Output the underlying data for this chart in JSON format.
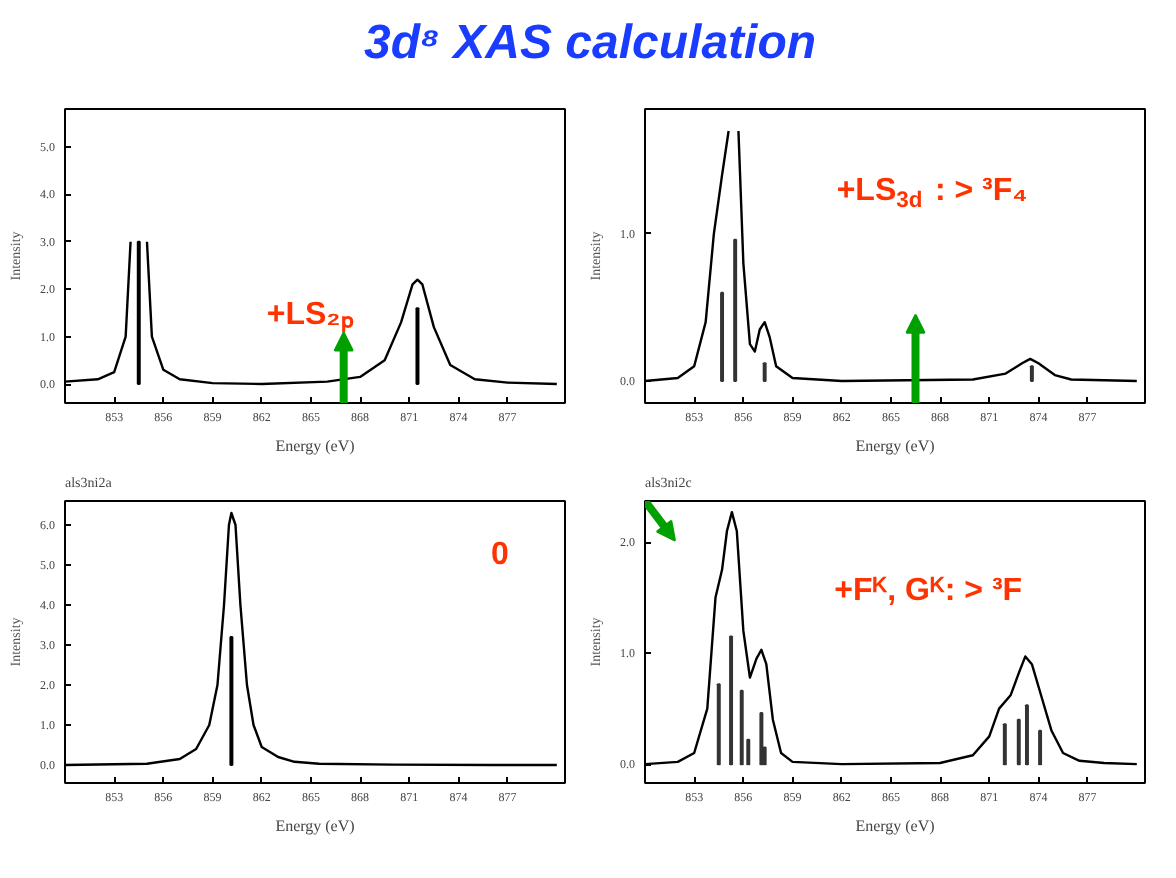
{
  "chart_data": [
    {
      "type": "line",
      "title": "3d⁸  XAS calculation",
      "xlabel": "Energy (eV)",
      "ylabel": "Intensity",
      "xlim": [
        850,
        880.5
      ],
      "xticks": [
        853,
        856,
        859,
        862,
        865,
        868,
        871,
        874,
        877
      ],
      "ylim": [
        -0.4,
        5.8
      ],
      "yticks": [
        {
          "value": 0,
          "label": "0.0"
        },
        {
          "value": 1,
          "label": "1.0"
        },
        {
          "value": 2,
          "label": "2.0"
        },
        {
          "value": 3,
          "label": "3.0"
        },
        {
          "value": 4,
          "label": "4.0"
        },
        {
          "value": 5,
          "label": "5.0"
        }
      ],
      "annotations": [
        "+LS₂ₚ"
      ],
      "grid": false,
      "series": [
        {
          "color": "#000000",
          "x": [
            850,
            852,
            853,
            853.7,
            854.0,
            854.3,
            854.7,
            855.0,
            855.3,
            856,
            857,
            859,
            862,
            866,
            868,
            869.5,
            870.5,
            871.2,
            871.5,
            871.8,
            872.5,
            873.5,
            875,
            877,
            880
          ],
          "values": [
            0.05,
            0.1,
            0.25,
            1.0,
            3.0,
            null,
            null,
            3.0,
            1.0,
            0.3,
            0.1,
            0.02,
            0.0,
            0.05,
            0.15,
            0.5,
            1.3,
            2.1,
            2.2,
            2.1,
            1.2,
            0.4,
            0.1,
            0.03,
            0.0
          ]
        },
        {
          "type": "bar",
          "color": "#000000",
          "x": [
            854.5,
            871.5
          ],
          "values": [
            3.0,
            1.6
          ]
        }
      ]
    },
    {
      "type": "line",
      "xlabel": "Energy (eV)",
      "ylabel": "Intensity",
      "xlim": [
        850,
        880.5
      ],
      "xticks": [
        853,
        856,
        859,
        862,
        865,
        868,
        871,
        874,
        877
      ],
      "ylim": [
        -0.15,
        1.85
      ],
      "yticks": [
        {
          "value": 0,
          "label": "0.0"
        },
        {
          "value": 1,
          "label": "1.0"
        }
      ],
      "annotations": [
        "+LS$_{3d}$ : > ³F₄"
      ],
      "grid": false,
      "series": [
        {
          "color": "#000000",
          "x": [
            850,
            852,
            853,
            853.7,
            854.2,
            854.7,
            855.1,
            855.4,
            855.7,
            856.0,
            856.4,
            856.7,
            857.0,
            857.3,
            857.6,
            858,
            859,
            862,
            870,
            872,
            873,
            873.5,
            874,
            875,
            876,
            880
          ],
          "values": [
            0.0,
            0.02,
            0.1,
            0.4,
            1.0,
            1.4,
            1.7,
            null,
            1.7,
            0.8,
            0.25,
            0.2,
            0.35,
            0.4,
            0.3,
            0.1,
            0.02,
            0.0,
            0.01,
            0.05,
            0.12,
            0.15,
            0.12,
            0.04,
            0.01,
            0.0
          ]
        },
        {
          "type": "bar",
          "color": "#333333",
          "x": [
            854.7,
            855.5,
            857.3,
            873.6
          ],
          "values": [
            0.6,
            0.96,
            0.12,
            0.1
          ]
        }
      ]
    },
    {
      "type": "line",
      "subtitle": "als3ni2a",
      "xlabel": "Energy (eV)",
      "ylabel": "Intensity",
      "xlim": [
        850,
        880.5
      ],
      "xticks": [
        853,
        856,
        859,
        862,
        865,
        868,
        871,
        874,
        877
      ],
      "ylim": [
        -0.45,
        6.6
      ],
      "yticks": [
        {
          "value": 0,
          "label": "0.0"
        },
        {
          "value": 1,
          "label": "1.0"
        },
        {
          "value": 2,
          "label": "2.0"
        },
        {
          "value": 3,
          "label": "3.0"
        },
        {
          "value": 4,
          "label": "4.0"
        },
        {
          "value": 5,
          "label": "5.0"
        },
        {
          "value": 6,
          "label": "6.0"
        }
      ],
      "annotations": [
        "0"
      ],
      "grid": false,
      "series": [
        {
          "color": "#000000",
          "x": [
            850,
            855,
            857,
            858,
            858.8,
            859.3,
            859.7,
            860,
            860.15,
            860.4,
            860.7,
            861.1,
            861.5,
            862,
            863,
            864,
            865.5,
            870,
            876,
            880
          ],
          "values": [
            0.0,
            0.03,
            0.15,
            0.4,
            1.0,
            2.0,
            4.0,
            6.0,
            6.3,
            6.0,
            4.0,
            2.0,
            1.0,
            0.45,
            0.2,
            0.08,
            0.03,
            0.01,
            0.0,
            0.0
          ]
        },
        {
          "type": "bar",
          "color": "#000000",
          "x": [
            860.15
          ],
          "values": [
            3.2
          ]
        }
      ]
    },
    {
      "type": "line",
      "subtitle": "als3ni2c",
      "xlabel": "Energy (eV)",
      "ylabel": "Intensity",
      "xlim": [
        850,
        880.5
      ],
      "xticks": [
        853,
        856,
        859,
        862,
        865,
        868,
        871,
        874,
        877
      ],
      "ylim": [
        -0.17,
        2.37
      ],
      "yticks": [
        {
          "value": 0,
          "label": "0.0"
        },
        {
          "value": 1,
          "label": "1.0"
        },
        {
          "value": 2,
          "label": "2.0"
        }
      ],
      "annotations": [
        "+Fᴷ, Gᴷ: > ³F"
      ],
      "grid": false,
      "series": [
        {
          "color": "#000000",
          "x": [
            850,
            852,
            853,
            853.8,
            854.3,
            854.7,
            855.0,
            855.3,
            855.6,
            856.0,
            856.4,
            856.8,
            857.1,
            857.4,
            857.8,
            858.3,
            859,
            862,
            868,
            870,
            871,
            871.6,
            872.3,
            872.8,
            873.2,
            873.6,
            874.2,
            874.8,
            875.5,
            876.5,
            878,
            880
          ],
          "values": [
            0.0,
            0.02,
            0.1,
            0.5,
            1.5,
            1.75,
            2.1,
            2.27,
            2.1,
            1.2,
            0.78,
            0.95,
            1.03,
            0.9,
            0.4,
            0.1,
            0.02,
            0.0,
            0.01,
            0.08,
            0.25,
            0.5,
            0.62,
            0.82,
            0.97,
            0.9,
            0.6,
            0.3,
            0.1,
            0.03,
            0.01,
            0.0
          ]
        },
        {
          "type": "bar",
          "color": "#333333",
          "x": [
            854.5,
            855.25,
            855.9,
            856.3,
            857.1,
            857.3,
            871.95,
            872.8,
            873.3,
            874.1
          ],
          "values": [
            0.72,
            1.15,
            0.66,
            0.22,
            0.46,
            0.15,
            0.36,
            0.4,
            0.53,
            0.3
          ]
        }
      ]
    }
  ]
}
